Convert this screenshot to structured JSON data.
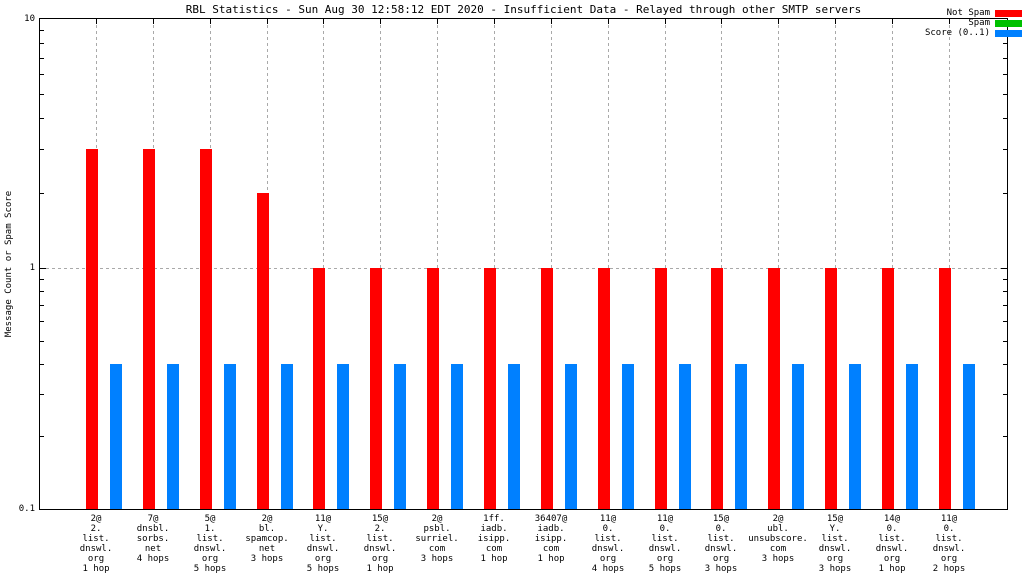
{
  "chart_data": {
    "type": "bar",
    "title": "RBL Statistics - Sun Aug 30 12:58:12 EDT 2020 - Insufficient Data - Relayed through other SMTP servers",
    "xlabel": "",
    "ylabel": "Message Count or Spam Score",
    "yscale": "log",
    "ylim": [
      0.1,
      10
    ],
    "ytick_labels": [
      "10",
      "1",
      "0.1"
    ],
    "ytick_values": [
      10,
      1,
      0.1
    ],
    "grid": true,
    "legend_position": "top-right",
    "grid_color": "#a9a9a9",
    "categories": [
      [
        "2@",
        "2.",
        "list.",
        "dnswl.",
        "org",
        "1 hop"
      ],
      [
        "7@",
        "dnsbl.",
        "sorbs.",
        "net",
        "4 hops"
      ],
      [
        "5@",
        "1.",
        "list.",
        "dnswl.",
        "org",
        "5 hops"
      ],
      [
        "2@",
        "bl.",
        "spamcop.",
        "net",
        "3 hops"
      ],
      [
        "11@",
        "Y.",
        "list.",
        "dnswl.",
        "org",
        "5 hops"
      ],
      [
        "15@",
        "2.",
        "list.",
        "dnswl.",
        "org",
        "1 hop"
      ],
      [
        "2@",
        "psbl.",
        "surriel.",
        "com",
        "3 hops"
      ],
      [
        "1ff.",
        "iadb.",
        "isipp.",
        "com",
        "1 hop"
      ],
      [
        "36407@",
        "iadb.",
        "isipp.",
        "com",
        "1 hop"
      ],
      [
        "11@",
        "0.",
        "list.",
        "dnswl.",
        "org",
        "4 hops"
      ],
      [
        "11@",
        "0.",
        "list.",
        "dnswl.",
        "org",
        "5 hops"
      ],
      [
        "15@",
        "0.",
        "list.",
        "dnswl.",
        "org",
        "3 hops"
      ],
      [
        "2@",
        "ubl.",
        "unsubscore.",
        "com",
        "3 hops"
      ],
      [
        "15@",
        "Y.",
        "list.",
        "dnswl.",
        "org",
        "3 hops"
      ],
      [
        "14@",
        "0.",
        "list.",
        "dnswl.",
        "org",
        "1 hop"
      ],
      [
        "11@",
        "0.",
        "list.",
        "dnswl.",
        "org",
        "2 hops"
      ]
    ],
    "series": [
      {
        "name": "Not Spam",
        "color": "#ff0000",
        "values": [
          3,
          3,
          3,
          2,
          1,
          1,
          1,
          1,
          1,
          1,
          1,
          1,
          1,
          1,
          1,
          1
        ]
      },
      {
        "name": "Spam",
        "color": "#00c000",
        "values": [
          0,
          0,
          0,
          0,
          0,
          0,
          0,
          0,
          0,
          0,
          0,
          0,
          0,
          0,
          0,
          0
        ]
      },
      {
        "name": "Score (0..1)",
        "color": "#0080ff",
        "values": [
          0.4,
          0.4,
          0.4,
          0.4,
          0.4,
          0.4,
          0.4,
          0.4,
          0.4,
          0.4,
          0.4,
          0.4,
          0.4,
          0.4,
          0.4,
          0.4
        ]
      }
    ]
  }
}
